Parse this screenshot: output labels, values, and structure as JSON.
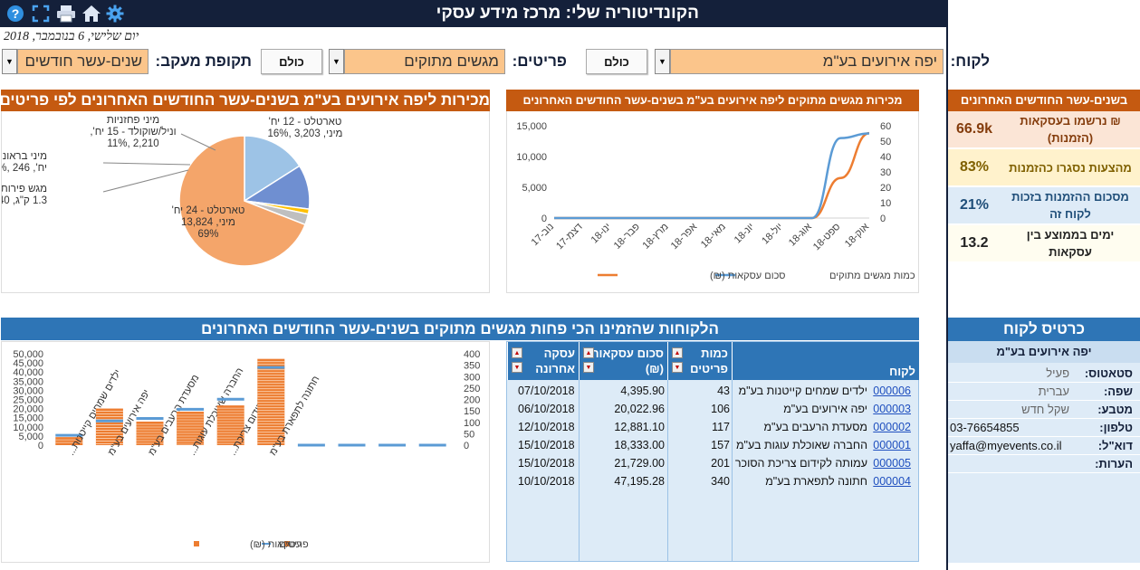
{
  "header": {
    "title": "הקונדיטוריה שלי: מרכז מידע עסקי",
    "icons": [
      "help-icon",
      "fullscreen-icon",
      "print-icon",
      "home-icon",
      "gear-icon"
    ]
  },
  "date": "יום שלישי, 6 בנובמבר, 2018",
  "filters": {
    "customer_label": "לקוח:",
    "customer_value": "יפה אירועים בע\"מ",
    "all_button": "כולם",
    "items_label": "פריטים:",
    "items_value": "מגשים מתוקים",
    "all_button2": "כולם",
    "period_label": "תקופת מעקב:",
    "period_value": "שנים-עשר חודשים"
  },
  "kpi": {
    "header": "בשנים-עשר החודשים האחרונים",
    "rows": [
      {
        "value": "66.9k",
        "label": "₪ נרשמו בעסקאות (הזמנות)",
        "bg": "#fbe5d6",
        "color": "#843c0c"
      },
      {
        "value": "83%",
        "label": "מהצעות נסגרו כהזמנות",
        "bg": "#fff2cc",
        "color": "#7f6000"
      },
      {
        "value": "21%",
        "label": "מסכום ההזמנות בזכות לקוח זה",
        "bg": "#deebf7",
        "color": "#1f4e79"
      },
      {
        "value": "13.2",
        "label": "ימים בממוצע בין עסקאות",
        "bg": "#fffdf0",
        "color": "#222222"
      }
    ]
  },
  "line_chart_panel": {
    "title": "מכירות מגשים מתוקים ליפה אירועים בע\"מ בשנים-עשר החודשים האחרונים",
    "legend_amount": "סכום עסקאות (₪)",
    "legend_qty": "כמות מגשים מתוקים"
  },
  "pie_panel": {
    "title": "מכירות ליפה אירועים בע\"מ בשנים-עשר החודשים האחרונים לפי פריטים",
    "labels": [
      [
        "טארטלט - 12 יח'",
        "מיני, 3,203 ,16%"
      ],
      [
        "מיני פחזניות",
        "וניל/שוקולד - 15 יח',",
        "2,210 ,11%"
      ],
      [
        "מיני בראוניז - 40",
        "יח', 246 ,1%"
      ],
      [
        "מגש פירות העונה -",
        "1.3 ק\"ג, 540 ,3%"
      ],
      [
        "טארטלט - 24 יח'",
        "מיני, 13,824",
        "69%"
      ]
    ]
  },
  "bar_panel": {
    "title": "הלקוחות שהזמינו הכי פחות מגשים מתוקים בשנים-עשר החודשים האחרונים",
    "legend_amount": "עסקאות (₪)",
    "legend_items": "פריטים"
  },
  "table": {
    "headers": {
      "customer": "לקוח",
      "qty": "כמות פריטים",
      "amount": "סכום עסקאות (₪)",
      "last": "עסקה אחרונה"
    },
    "rows": [
      {
        "id": "000006",
        "name": "ילדים שמחים קייטנות בע\"מ",
        "qty": "43",
        "amount": "4,395.90",
        "last": "07/10/2018"
      },
      {
        "id": "000003",
        "name": "יפה אירועים בע\"מ",
        "qty": "106",
        "amount": "20,022.96",
        "last": "06/10/2018"
      },
      {
        "id": "000002",
        "name": "מסעדת הרעבים בע\"מ",
        "qty": "117",
        "amount": "12,881.10",
        "last": "12/10/2018"
      },
      {
        "id": "000001",
        "name": "החברה שאוכלת עוגות בע\"מ",
        "qty": "157",
        "amount": "18,333.00",
        "last": "15/10/2018"
      },
      {
        "id": "000005",
        "name": "עמותה לקידום צריכת הסוכר",
        "qty": "201",
        "amount": "21,729.00",
        "last": "15/10/2018"
      },
      {
        "id": "000004",
        "name": "חתונה לתפארת בע\"מ",
        "qty": "340",
        "amount": "47,195.28",
        "last": "10/10/2018"
      }
    ]
  },
  "card": {
    "title": "כרטיס לקוח",
    "customer": "יפה אירועים בע\"מ",
    "rows": [
      {
        "label": "סטאטוס:",
        "value": "פעיל"
      },
      {
        "label": "שפה:",
        "value": "עברית"
      },
      {
        "label": "מטבע:",
        "value": "שקל חדש"
      },
      {
        "label": "טלפון:",
        "value": "03-76654855"
      },
      {
        "label": "דוא\"ל:",
        "value": "yaffa@myevents.co.il"
      },
      {
        "label": "הערות:",
        "value": ""
      }
    ]
  },
  "chart_data": [
    {
      "type": "line",
      "title": "מכירות מגשים מתוקים ליפה אירועים בע\"מ בשנים-עשר החודשים האחרונים",
      "x": [
        "נוב-17",
        "דצמ-17",
        "ינו-18",
        "פבר-18",
        "מרץ-18",
        "אפר-18",
        "מאי-18",
        "יונ-18",
        "יול-18",
        "אוג-18",
        "ספט-18",
        "אוק-18"
      ],
      "series": [
        {
          "name": "סכום עסקאות (₪)",
          "axis": "left",
          "color": "#ed7d31",
          "values": [
            0,
            0,
            0,
            0,
            0,
            0,
            0,
            0,
            0,
            0,
            6500,
            13800
          ]
        },
        {
          "name": "כמות מגשים מתוקים",
          "axis": "right",
          "color": "#5b9bd5",
          "values": [
            0,
            0,
            0,
            0,
            0,
            0,
            0,
            0,
            0,
            0,
            52,
            55
          ]
        }
      ],
      "ylim_left": [
        0,
        15000
      ],
      "yticks_left": [
        0,
        5000,
        10000,
        15000
      ],
      "yticks_left_labels": [
        "0",
        "5,000",
        "10,000",
        "15,000"
      ],
      "ylim_right": [
        0,
        60
      ],
      "yticks_right": [
        0,
        10,
        20,
        30,
        40,
        50,
        60
      ],
      "legend": "bottom"
    },
    {
      "type": "pie",
      "title": "מכירות ליפה אירועים בע\"מ בשנים-עשר החודשים האחרונים לפי פריטים",
      "slices": [
        {
          "label": "טארטלט - 12 יח' מיני",
          "value": 3203,
          "percent": 16,
          "color": "#9dc3e6"
        },
        {
          "label": "מיני פחזניות וניל/שוקולד - 15 יח'",
          "value": 2210,
          "percent": 11,
          "color": "#6f8fd1"
        },
        {
          "label": "מיני בראוניז - 40 יח'",
          "value": 246,
          "percent": 1,
          "color": "#ffc000"
        },
        {
          "label": "מגש פירות העונה - 1.3 ק\"ג",
          "value": 540,
          "percent": 3,
          "color": "#bfbfbf"
        },
        {
          "label": "טארטלט - 24 יח' מיני",
          "value": 13824,
          "percent": 69,
          "color": "#f4a56a"
        }
      ]
    },
    {
      "type": "bar",
      "title": "הלקוחות שהזמינו הכי פחות מגשים מתוקים בשנים-עשר החודשים האחרונים",
      "categories": [
        "ילדים שמחים קייטנות...",
        "יפה אירועים בע\"מ",
        "מסעדת הרעבים בע\"מ",
        "החברה שאוכלת עוגות...",
        "עמותה לקידום צריכת...",
        "חתונה לתפארת בע\"מ",
        "",
        "",
        "",
        ""
      ],
      "series": [
        {
          "name": "עסקאות (₪)",
          "axis": "left",
          "color": "#ed7d31",
          "values": [
            4395.9,
            20022.96,
            12881.1,
            18333,
            21729,
            47195.28,
            0,
            0,
            0,
            0
          ]
        },
        {
          "name": "פריטים",
          "axis": "right",
          "color": "#5b9bd5",
          "values": [
            43,
            106,
            117,
            157,
            201,
            340,
            0,
            0,
            0,
            0
          ]
        }
      ],
      "ylim_left": [
        0,
        50000
      ],
      "yticks_left": [
        0,
        5000,
        10000,
        15000,
        20000,
        25000,
        30000,
        35000,
        40000,
        45000,
        50000
      ],
      "yticks_left_labels": [
        "0",
        "5,000",
        "10,000",
        "15,000",
        "20,000",
        "25,000",
        "30,000",
        "35,000",
        "40,000",
        "45,000",
        "50,000"
      ],
      "ylim_right": [
        0,
        400
      ],
      "yticks_right": [
        0,
        50,
        100,
        150,
        200,
        250,
        300,
        350,
        400
      ],
      "legend": "bottom"
    }
  ]
}
